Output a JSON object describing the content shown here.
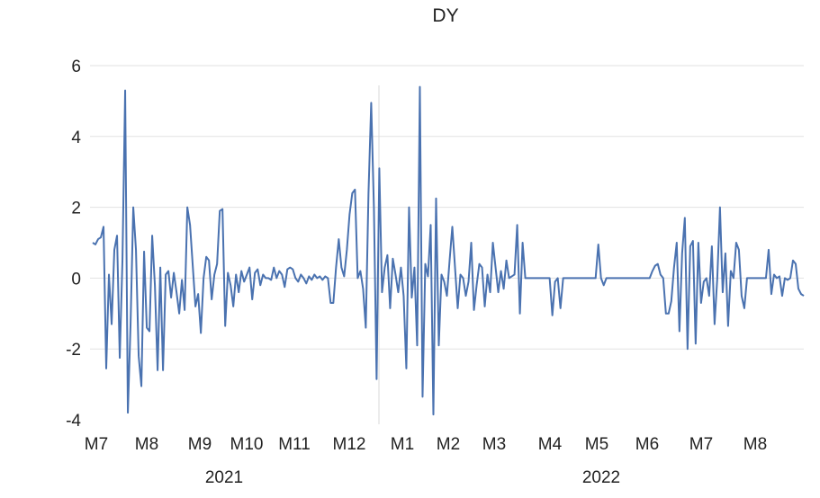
{
  "chart_data": {
    "type": "line",
    "title": "DY",
    "ylim": [
      -4,
      6
    ],
    "yticks": [
      -4,
      -2,
      0,
      2,
      4,
      6
    ],
    "grid": true,
    "legend": "none",
    "x_month_labels": [
      "M7",
      "M8",
      "M9",
      "M10",
      "M11",
      "M12",
      "M1",
      "M2",
      "M3",
      "M4",
      "M5",
      "M6",
      "M7",
      "M8"
    ],
    "x_year_labels": [
      "2021",
      "2022"
    ],
    "series": [
      {
        "color": "#4a72b0",
        "values": [
          1.0,
          0.95,
          1.1,
          1.15,
          1.45,
          -2.55,
          0.1,
          -1.3,
          0.8,
          1.2,
          -2.25,
          0.5,
          5.3,
          -3.8,
          -1.3,
          2.0,
          0.8,
          -2.2,
          -3.05,
          0.75,
          -1.4,
          -1.5,
          1.2,
          -0.2,
          -2.6,
          0.3,
          -2.6,
          0.1,
          0.2,
          -0.55,
          0.15,
          -0.4,
          -1.0,
          -0.05,
          -0.9,
          2.0,
          1.5,
          0.35,
          -0.8,
          -0.45,
          -1.55,
          0.0,
          0.6,
          0.5,
          -0.6,
          0.1,
          0.4,
          1.9,
          1.95,
          -1.35,
          0.15,
          -0.2,
          -0.8,
          0.1,
          -0.4,
          0.2,
          -0.1,
          0.1,
          0.3,
          -0.6,
          0.15,
          0.25,
          -0.2,
          0.1,
          0.0,
          0.0,
          -0.05,
          0.3,
          0.0,
          0.2,
          0.1,
          -0.25,
          0.25,
          0.3,
          0.25,
          0.0,
          -0.1,
          0.1,
          0.0,
          -0.15,
          0.05,
          -0.05,
          0.1,
          0.0,
          0.05,
          -0.05,
          0.05,
          0.0,
          -0.7,
          -0.7,
          0.3,
          1.1,
          0.3,
          0.05,
          0.8,
          1.8,
          2.4,
          2.5,
          0.0,
          0.2,
          -0.3,
          -1.4,
          2.4,
          4.95,
          2.0,
          -2.85,
          3.1,
          -0.4,
          0.3,
          0.65,
          -0.85,
          0.55,
          0.1,
          -0.4,
          0.3,
          -0.5,
          -2.55,
          2.0,
          -0.55,
          0.3,
          -1.9,
          5.4,
          -3.35,
          0.4,
          0.05,
          1.5,
          -3.85,
          2.25,
          -1.9,
          0.1,
          -0.1,
          -0.5,
          0.5,
          1.45,
          0.3,
          -0.85,
          0.1,
          0.0,
          -0.5,
          -0.1,
          1.0,
          -0.9,
          -0.2,
          0.4,
          0.3,
          -0.8,
          0.1,
          -0.4,
          1.0,
          0.3,
          -0.4,
          0.2,
          -0.3,
          0.5,
          0.0,
          0.05,
          0.1,
          1.5,
          -1.0,
          1.0,
          0.0,
          0.0,
          0.0,
          0.0,
          0.0,
          0.0,
          0.0,
          0.0,
          0.0,
          0.0,
          -1.05,
          -0.1,
          0.0,
          -0.85,
          0.0,
          0.0,
          0.0,
          0.0,
          0.0,
          0.0,
          0.0,
          0.0,
          0.0,
          0.0,
          0.0,
          0.0,
          0.0,
          0.95,
          0.0,
          -0.2,
          0.0,
          0.0,
          0.0,
          0.0,
          0.0,
          0.0,
          0.0,
          0.0,
          0.0,
          0.0,
          0.0,
          0.0,
          0.0,
          0.0,
          0.0,
          0.0,
          0.0,
          0.2,
          0.35,
          0.4,
          0.1,
          0.0,
          -1.0,
          -1.0,
          -0.65,
          0.3,
          1.0,
          -1.5,
          0.7,
          1.7,
          -2.0,
          0.9,
          1.05,
          -1.85,
          1.0,
          -0.7,
          -0.1,
          0.0,
          -0.5,
          0.9,
          -1.3,
          0.0,
          2.0,
          -0.4,
          0.7,
          -1.35,
          0.2,
          0.0,
          1.0,
          0.8,
          -0.5,
          -0.85,
          0.0,
          0.0,
          0.0,
          0.0,
          0.0,
          0.0,
          0.0,
          0.0,
          0.8,
          -0.45,
          0.1,
          0.0,
          0.05,
          -0.5,
          0.0,
          -0.05,
          0.0,
          0.5,
          0.4,
          -0.3,
          -0.45,
          -0.5
        ]
      }
    ]
  }
}
